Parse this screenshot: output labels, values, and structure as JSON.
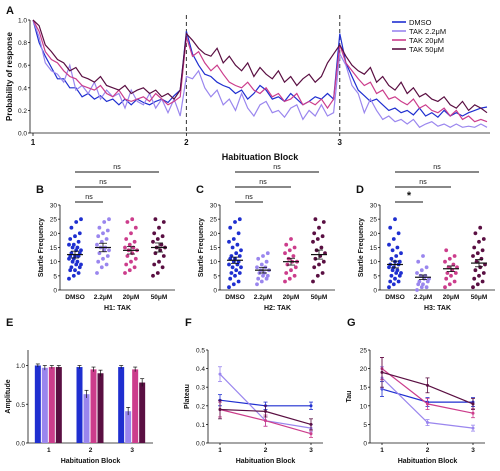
{
  "colors": {
    "DMSO": "#1f2fd0",
    "TAK 2.2μM": "#9a86ee",
    "TAK 20μM": "#cc3d8c",
    "TAK 50μM": "#5a0f42"
  },
  "chart_data": [
    {
      "panel": "A",
      "type": "line",
      "ylabel": "Probability of response",
      "xlabel": "Habituation Block",
      "xticks": [
        "1",
        "2",
        "3"
      ],
      "ylim": [
        0,
        1.0
      ],
      "yticks": [
        "0.0",
        "0.2",
        "0.4",
        "0.6",
        "0.8",
        "1.0"
      ],
      "legend_position": "top-right",
      "series": [
        {
          "name": "DMSO",
          "values": [
            1.0,
            0.8,
            0.68,
            0.58,
            0.48,
            0.48,
            0.4,
            0.4,
            0.32,
            0.35,
            0.3,
            0.33,
            0.28,
            0.3,
            0.25,
            0.3,
            0.25,
            0.3,
            0.27,
            0.25,
            0.28,
            0.3,
            0.27,
            0.33,
            0.38,
            0.9,
            0.7,
            0.6,
            0.52,
            0.5,
            0.45,
            0.42,
            0.4,
            0.35,
            0.38,
            0.3,
            0.35,
            0.42,
            0.38,
            0.3,
            0.32,
            0.28,
            0.35,
            0.3,
            0.25,
            0.28,
            0.32,
            0.3,
            0.35,
            0.3,
            0.88,
            0.62,
            0.5,
            0.38,
            0.33,
            0.28,
            0.3,
            0.25,
            0.2,
            0.22,
            0.18,
            0.2,
            0.16,
            0.22,
            0.15,
            0.18,
            0.14,
            0.2,
            0.15,
            0.18,
            0.15,
            0.18,
            0.2,
            0.22,
            0.23
          ]
        },
        {
          "name": "TAK 2.2μM",
          "values": [
            1.0,
            0.85,
            0.62,
            0.55,
            0.52,
            0.45,
            0.6,
            0.38,
            0.42,
            0.35,
            0.45,
            0.3,
            0.38,
            0.32,
            0.35,
            0.22,
            0.38,
            0.28,
            0.25,
            0.35,
            0.22,
            0.3,
            0.18,
            0.3,
            0.15,
            0.5,
            0.48,
            0.55,
            0.4,
            0.32,
            0.38,
            0.25,
            0.3,
            0.2,
            0.35,
            0.22,
            0.15,
            0.25,
            0.28,
            0.18,
            0.2,
            0.14,
            0.22,
            0.25,
            0.12,
            0.2,
            0.15,
            0.25,
            0.15,
            0.18,
            0.7,
            0.6,
            0.42,
            0.35,
            0.18,
            0.3,
            0.2,
            0.12,
            0.15,
            0.1,
            0.12,
            0.08,
            0.12,
            0.05,
            0.08,
            0.1,
            0.06,
            0.08,
            0.05,
            0.08,
            0.05,
            0.06,
            0.05,
            0.08,
            0.05
          ]
        },
        {
          "name": "TAK 20μM",
          "values": [
            1.0,
            0.9,
            0.72,
            0.65,
            0.62,
            0.55,
            0.5,
            0.48,
            0.42,
            0.4,
            0.38,
            0.42,
            0.35,
            0.32,
            0.38,
            0.3,
            0.28,
            0.3,
            0.32,
            0.28,
            0.35,
            0.3,
            0.25,
            0.28,
            0.32,
            0.85,
            0.68,
            0.72,
            0.62,
            0.55,
            0.6,
            0.52,
            0.45,
            0.42,
            0.4,
            0.45,
            0.38,
            0.35,
            0.4,
            0.32,
            0.35,
            0.28,
            0.3,
            0.35,
            0.25,
            0.28,
            0.25,
            0.3,
            0.22,
            0.3,
            0.78,
            0.62,
            0.55,
            0.48,
            0.42,
            0.45,
            0.35,
            0.38,
            0.3,
            0.32,
            0.28,
            0.25,
            0.3,
            0.22,
            0.25,
            0.2,
            0.18,
            0.22,
            0.15,
            0.2,
            0.12,
            0.15,
            0.1,
            0.12,
            0.1
          ]
        },
        {
          "name": "TAK 50μM",
          "values": [
            1.0,
            0.95,
            0.78,
            0.72,
            0.65,
            0.62,
            0.55,
            0.58,
            0.5,
            0.48,
            0.45,
            0.5,
            0.42,
            0.4,
            0.38,
            0.42,
            0.35,
            0.38,
            0.4,
            0.35,
            0.38,
            0.32,
            0.35,
            0.3,
            0.38,
            0.88,
            0.82,
            0.75,
            0.7,
            0.68,
            0.75,
            0.62,
            0.68,
            0.6,
            0.55,
            0.62,
            0.5,
            0.58,
            0.52,
            0.48,
            0.55,
            0.45,
            0.5,
            0.42,
            0.48,
            0.52,
            0.45,
            0.5,
            0.62,
            0.7,
            0.78,
            0.68,
            0.6,
            0.55,
            0.52,
            0.58,
            0.45,
            0.5,
            0.42,
            0.38,
            0.45,
            0.35,
            0.4,
            0.32,
            0.35,
            0.3,
            0.28,
            0.32,
            0.25,
            0.22,
            0.28,
            0.2,
            0.25,
            0.22,
            0.18
          ]
        }
      ]
    },
    {
      "panel": "B",
      "type": "scatter",
      "ylabel": "Startle Frequency",
      "xlabel": "H1: TAK",
      "categories": [
        "DMSO",
        "2.2μM",
        "20μM",
        "50μM"
      ],
      "ylim": [
        0,
        30
      ],
      "yticks": [
        "0",
        "5",
        "10",
        "15",
        "20",
        "25",
        "30"
      ],
      "means": [
        12.5,
        15,
        14,
        15
      ],
      "sem": [
        1.2,
        1.5,
        1.3,
        1.6
      ],
      "points": [
        [
          4,
          5,
          6,
          7,
          7,
          8,
          8,
          9,
          9,
          10,
          10,
          11,
          11,
          12,
          12,
          12,
          13,
          13,
          14,
          14,
          15,
          15,
          16,
          16,
          17,
          18,
          19,
          20,
          22,
          24,
          25
        ],
        [
          6,
          8,
          9,
          10,
          11,
          12,
          13,
          14,
          14,
          15,
          15,
          16,
          17,
          18,
          19,
          20,
          21,
          22,
          24,
          25
        ],
        [
          6,
          7,
          8,
          9,
          10,
          11,
          12,
          13,
          14,
          14,
          15,
          15,
          16,
          17,
          18,
          20,
          22,
          24,
          25
        ],
        [
          5,
          6,
          8,
          9,
          10,
          12,
          13,
          14,
          15,
          15,
          16,
          17,
          18,
          19,
          20,
          22,
          24,
          25
        ]
      ],
      "annotations": [
        "ns",
        "ns",
        "ns"
      ]
    },
    {
      "panel": "C",
      "type": "scatter",
      "ylabel": "Startle Frequency",
      "xlabel": "H2: TAK",
      "categories": [
        "DMSO",
        "2.2μM",
        "20μM",
        "50μM"
      ],
      "ylim": [
        0,
        30
      ],
      "yticks": [
        "0",
        "5",
        "10",
        "15",
        "20",
        "25",
        "30"
      ],
      "means": [
        10.5,
        7,
        10,
        12.5
      ],
      "sem": [
        1.1,
        1.0,
        1.2,
        1.6
      ],
      "points": [
        [
          1,
          2,
          3,
          4,
          5,
          6,
          6,
          7,
          8,
          8,
          9,
          9,
          10,
          10,
          11,
          11,
          12,
          12,
          13,
          14,
          15,
          16,
          17,
          18,
          20,
          22,
          24,
          25
        ],
        [
          2,
          3,
          4,
          4,
          5,
          5,
          6,
          6,
          7,
          7,
          8,
          8,
          9,
          10,
          11,
          12,
          13
        ],
        [
          3,
          4,
          5,
          6,
          7,
          8,
          9,
          10,
          10,
          11,
          12,
          13,
          14,
          15,
          16,
          18
        ],
        [
          3,
          5,
          6,
          8,
          9,
          10,
          11,
          12,
          13,
          14,
          15,
          17,
          18,
          19,
          20,
          22,
          24,
          25
        ]
      ],
      "annotations": [
        "ns",
        "ns",
        "ns"
      ]
    },
    {
      "panel": "D",
      "type": "scatter",
      "ylabel": "Startle Frequency",
      "xlabel": "H3: TAK",
      "categories": [
        "DMSO",
        "2.2μM",
        "20μM",
        "50μM"
      ],
      "ylim": [
        0,
        30
      ],
      "yticks": [
        "0",
        "5",
        "10",
        "15",
        "20",
        "25",
        "30"
      ],
      "means": [
        9,
        4.5,
        7.5,
        9.5
      ],
      "sem": [
        1.2,
        0.8,
        1.0,
        1.3
      ],
      "points": [
        [
          1,
          2,
          3,
          3,
          4,
          5,
          5,
          6,
          6,
          7,
          7,
          8,
          8,
          9,
          9,
          10,
          10,
          11,
          12,
          13,
          14,
          15,
          16,
          18,
          20,
          22,
          25
        ],
        [
          0,
          1,
          1,
          2,
          2,
          3,
          3,
          4,
          4,
          5,
          5,
          6,
          7,
          8,
          10,
          12
        ],
        [
          1,
          2,
          3,
          4,
          5,
          6,
          6,
          7,
          8,
          8,
          9,
          10,
          11,
          12,
          14
        ],
        [
          1,
          2,
          3,
          4,
          5,
          6,
          7,
          8,
          9,
          10,
          11,
          12,
          13,
          14,
          15,
          17,
          18,
          20,
          22
        ]
      ],
      "annotations": [
        "*",
        "ns",
        "ns"
      ]
    },
    {
      "panel": "E",
      "type": "bar",
      "ylabel": "Amplitude",
      "xlabel": "Habituation Block",
      "categories": [
        "1",
        "2",
        "3"
      ],
      "ylim": [
        0,
        1.2
      ],
      "yticks": [
        "0.0",
        "0.5",
        "1.0"
      ],
      "series": [
        {
          "name": "DMSO",
          "values": [
            1.0,
            0.98,
            0.98
          ],
          "sem": [
            0.02,
            0.02,
            0.02
          ]
        },
        {
          "name": "TAK 2.2μM",
          "values": [
            0.97,
            0.63,
            0.41
          ],
          "sem": [
            0.03,
            0.05,
            0.05
          ]
        },
        {
          "name": "TAK 20μM",
          "values": [
            0.98,
            0.95,
            0.95
          ],
          "sem": [
            0.02,
            0.03,
            0.03
          ]
        },
        {
          "name": "TAK 50μM",
          "values": [
            0.98,
            0.9,
            0.78
          ],
          "sem": [
            0.02,
            0.04,
            0.05
          ]
        }
      ]
    },
    {
      "panel": "F",
      "type": "line",
      "ylabel": "Plateau",
      "xlabel": "Habituation Block",
      "categories": [
        "1",
        "2",
        "3"
      ],
      "ylim": [
        0,
        0.5
      ],
      "yticks": [
        "0.0",
        "0.1",
        "0.2",
        "0.3",
        "0.4",
        "0.5"
      ],
      "series": [
        {
          "name": "DMSO",
          "values": [
            0.23,
            0.2,
            0.2
          ],
          "sem": [
            0.03,
            0.02,
            0.02
          ]
        },
        {
          "name": "TAK 2.2μM",
          "values": [
            0.37,
            0.12,
            0.08
          ],
          "sem": [
            0.04,
            0.03,
            0.02
          ]
        },
        {
          "name": "TAK 20μM",
          "values": [
            0.18,
            0.12,
            0.05
          ],
          "sem": [
            0.04,
            0.03,
            0.02
          ]
        },
        {
          "name": "TAK 50μM",
          "values": [
            0.18,
            0.17,
            0.1
          ],
          "sem": [
            0.05,
            0.03,
            0.03
          ]
        }
      ]
    },
    {
      "panel": "G",
      "type": "line",
      "ylabel": "Tau",
      "xlabel": "Habituation Block",
      "categories": [
        "1",
        "2",
        "3"
      ],
      "ylim": [
        0,
        25
      ],
      "yticks": [
        "0",
        "5",
        "10",
        "15",
        "20",
        "25"
      ],
      "series": [
        {
          "name": "DMSO",
          "values": [
            14.5,
            11,
            11
          ],
          "sem": [
            2,
            1.2,
            1.2
          ]
        },
        {
          "name": "TAK 2.2μM",
          "values": [
            17.5,
            5.5,
            4
          ],
          "sem": [
            3,
            0.8,
            0.8
          ]
        },
        {
          "name": "TAK 20μM",
          "values": [
            20,
            10.5,
            8
          ],
          "sem": [
            3,
            1.5,
            1.2
          ]
        },
        {
          "name": "TAK 50μM",
          "values": [
            19,
            15.5,
            10.5
          ],
          "sem": [
            4,
            2,
            1.5
          ]
        }
      ]
    }
  ]
}
